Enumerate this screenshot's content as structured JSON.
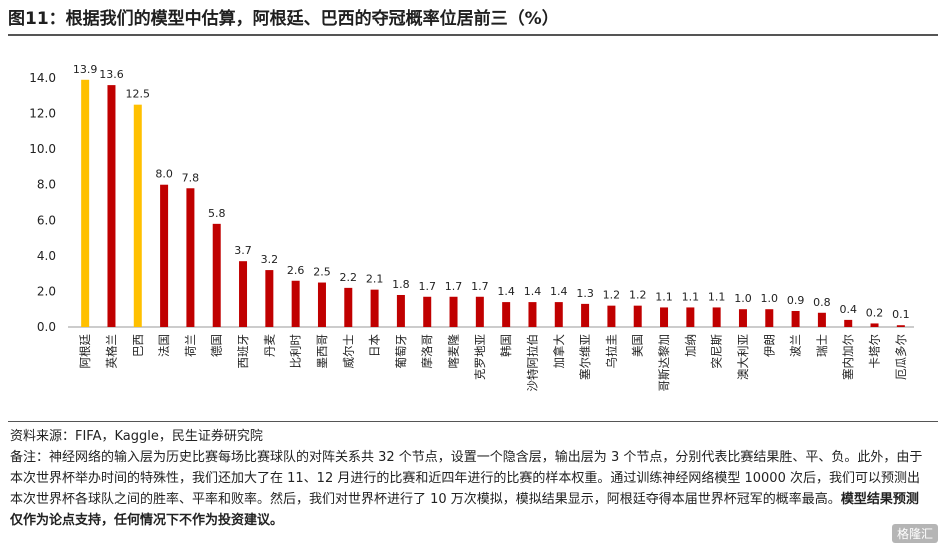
{
  "title": "图11：根据我们的模型中估算，阿根廷、巴西的夺冠概率位居前三（%）",
  "source": "资料来源：FIFA，Kaggle，民生证券研究院",
  "note_1": "备注：神经网络的输入层为历史比赛每场比赛球队的对阵关系共 32 个节点，设置一个隐含层，输出层为 3 个节点，分别代表比赛结果胜、平、负。此外，由于本次世界杯举办时间的特殊性，我们还加大了在 11、12 月进行的比赛和近四年进行的比赛的样本权重。通过训练神经网络模型 10000 次后，我们可以预测出本次世界杯各球队之间的胜率、平率和败率。然后，我们对世界杯进行了 10 万次模拟，模拟结果显示，阿根廷夺得本届世界杯冠军的概率最高。",
  "note_bold": "模型结果预测仅作为论点支持，任何情况下不作为投资建议。",
  "watermark": "格隆汇",
  "colors": {
    "highlight": "#FFC000",
    "default": "#C00000",
    "axis": "#999999"
  },
  "chart_data": {
    "type": "bar",
    "categories": [
      "阿根廷",
      "英格兰",
      "巴西",
      "法国",
      "荷兰",
      "德国",
      "西班牙",
      "丹麦",
      "比利时",
      "墨西哥",
      "威尔士",
      "日本",
      "葡萄牙",
      "摩洛哥",
      "喀麦隆",
      "克罗地亚",
      "韩国",
      "沙特阿拉伯",
      "加拿大",
      "塞尔维亚",
      "乌拉圭",
      "美国",
      "哥斯达黎加",
      "加纳",
      "突尼斯",
      "澳大利亚",
      "伊朗",
      "波兰",
      "瑞士",
      "塞内加尔",
      "卡塔尔",
      "厄瓜多尔"
    ],
    "values": [
      13.9,
      13.6,
      12.5,
      8.0,
      7.8,
      5.8,
      3.7,
      3.2,
      2.6,
      2.5,
      2.2,
      2.1,
      1.8,
      1.7,
      1.7,
      1.7,
      1.4,
      1.4,
      1.4,
      1.3,
      1.2,
      1.2,
      1.1,
      1.1,
      1.1,
      1.0,
      1.0,
      0.9,
      0.8,
      0.4,
      0.2,
      0.1
    ],
    "value_labels": [
      "13.9",
      "13.6",
      "12.5",
      "8.0",
      "7.8",
      "5.8",
      "3.7",
      "3.2",
      "2.6",
      "2.5",
      "2.2",
      "2.1",
      "1.8",
      "1.7",
      "1.7",
      "1.7",
      "1.4",
      "1.4",
      "1.4",
      "1.3",
      "1.2",
      "1.2",
      "1.1",
      "1.1",
      "1.1",
      "1.0",
      "1.0",
      "0.9",
      "0.8",
      "0.4",
      "0.2",
      "0.1"
    ],
    "highlighted": [
      "阿根廷",
      "巴西"
    ],
    "ylim": [
      0,
      14
    ],
    "yticks": [
      "0.0",
      "2.0",
      "4.0",
      "6.0",
      "8.0",
      "10.0",
      "12.0",
      "14.0"
    ],
    "ytick_values": [
      0,
      2,
      4,
      6,
      8,
      10,
      12,
      14
    ],
    "grid": false,
    "legend": "none"
  }
}
